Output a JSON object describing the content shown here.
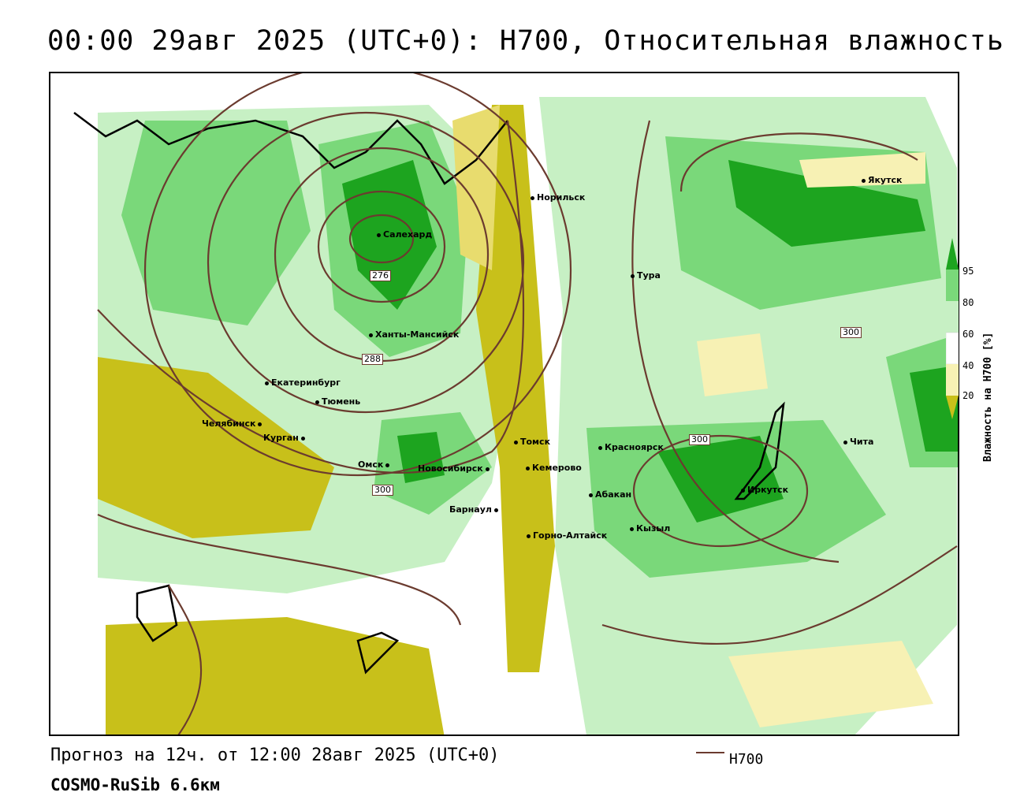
{
  "title": "00:00 29авг 2025 (UTC+0): H700, Относительная влажность",
  "footer": {
    "forecast": "Прогноз на 12ч. от 12:00 28авг 2025 (UTC+0)",
    "model": "COSMO-RuSib 6.6км"
  },
  "legend": {
    "h700_label": "H700",
    "h700_color": "#6b3b2f"
  },
  "colorbar": {
    "title": "Влажность на H700 [%]",
    "ticks": [
      "95",
      "80",
      "60",
      "40",
      "20"
    ],
    "colors": {
      "very_dry": "#c8c01a",
      "dry": "#e8dc6e",
      "semi_dry": "#f7f1b4",
      "neutral": "#ffffff",
      "moist": "#c7f0c4",
      "wet": "#7ad87a",
      "very_wet": "#1da41f"
    }
  },
  "contour_labels": [
    "276",
    "288",
    "300",
    "300",
    "300"
  ],
  "cities": [
    {
      "name": "Салехард"
    },
    {
      "name": "Норильск"
    },
    {
      "name": "Якутск"
    },
    {
      "name": "Тура"
    },
    {
      "name": "Ханты-Мансийск"
    },
    {
      "name": "Екатеринбург"
    },
    {
      "name": "Тюмень"
    },
    {
      "name": "Челябинск"
    },
    {
      "name": "Курган"
    },
    {
      "name": "Омск"
    },
    {
      "name": "Новосибирск"
    },
    {
      "name": "Томск"
    },
    {
      "name": "Кемерово"
    },
    {
      "name": "Барнаул"
    },
    {
      "name": "Красноярск"
    },
    {
      "name": "Абакан"
    },
    {
      "name": "Кызыл"
    },
    {
      "name": "Горно-Алтайск"
    },
    {
      "name": "Иркутск"
    },
    {
      "name": "Чита"
    }
  ]
}
